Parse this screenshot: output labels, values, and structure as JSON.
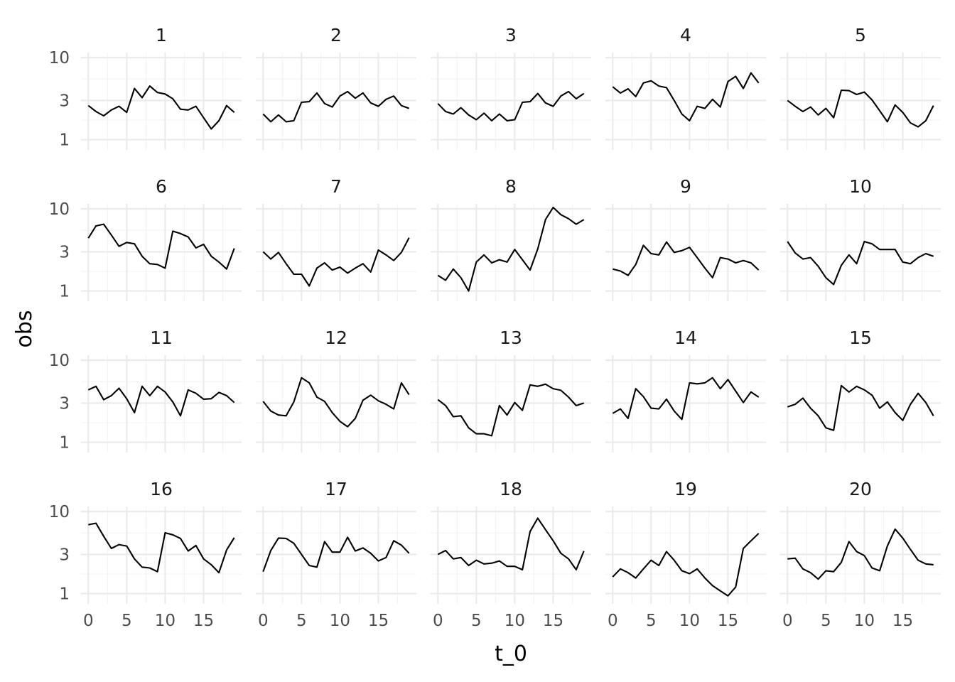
{
  "chart_data": {
    "type": "line",
    "facets": "wrap",
    "ncol": 5,
    "xlabel": "t_0",
    "ylabel": "obs",
    "y_scale": "log10",
    "xlim": [
      -0.95,
      19.95
    ],
    "ylim": [
      0.75,
      11.5
    ],
    "x_ticks": [
      0,
      5,
      10,
      15
    ],
    "y_ticks": [
      1,
      3,
      10
    ],
    "grid": true,
    "x": [
      0,
      1,
      2,
      3,
      4,
      5,
      6,
      7,
      8,
      9,
      10,
      11,
      12,
      13,
      14,
      15,
      16,
      17,
      18,
      19
    ],
    "panels": [
      {
        "label": "1",
        "values": [
          2.6,
          2.2,
          1.95,
          2.3,
          2.55,
          2.15,
          4.2,
          3.25,
          4.5,
          3.75,
          3.6,
          3.15,
          2.35,
          2.3,
          2.55,
          1.85,
          1.35,
          1.7,
          2.6,
          2.15
        ]
      },
      {
        "label": "2",
        "values": [
          2.05,
          1.65,
          2.0,
          1.65,
          1.7,
          2.85,
          2.9,
          3.7,
          2.75,
          2.5,
          3.4,
          3.85,
          3.2,
          3.7,
          2.8,
          2.55,
          3.1,
          3.4,
          2.6,
          2.4
        ]
      },
      {
        "label": "3",
        "values": [
          2.75,
          2.2,
          2.05,
          2.45,
          2.0,
          1.75,
          2.1,
          1.7,
          2.05,
          1.7,
          1.75,
          2.85,
          2.9,
          3.65,
          2.8,
          2.55,
          3.4,
          3.85,
          3.15,
          3.65
        ]
      },
      {
        "label": "4",
        "values": [
          4.4,
          3.7,
          4.15,
          3.35,
          4.9,
          5.2,
          4.5,
          4.3,
          3.0,
          2.05,
          1.7,
          2.55,
          2.4,
          3.1,
          2.5,
          5.1,
          5.9,
          4.2,
          6.5,
          4.9
        ]
      },
      {
        "label": "5",
        "values": [
          3.0,
          2.55,
          2.2,
          2.5,
          2.0,
          2.4,
          1.85,
          4.0,
          3.95,
          3.55,
          3.8,
          3.05,
          2.25,
          1.65,
          2.65,
          2.15,
          1.6,
          1.43,
          1.7,
          2.6
        ]
      },
      {
        "label": "6",
        "values": [
          4.4,
          6.2,
          6.5,
          4.8,
          3.5,
          3.9,
          3.75,
          2.65,
          2.15,
          2.1,
          1.9,
          5.35,
          5.0,
          4.55,
          3.35,
          3.7,
          2.65,
          2.25,
          1.85,
          3.3
        ]
      },
      {
        "label": "7",
        "values": [
          3.0,
          2.45,
          2.95,
          2.15,
          1.6,
          1.6,
          1.15,
          1.9,
          2.2,
          1.8,
          1.95,
          1.65,
          1.9,
          2.15,
          1.7,
          3.15,
          2.75,
          2.35,
          2.95,
          4.45
        ]
      },
      {
        "label": "8",
        "values": [
          1.55,
          1.35,
          1.85,
          1.45,
          1.0,
          2.25,
          2.75,
          2.2,
          2.4,
          2.25,
          3.2,
          2.4,
          1.8,
          3.25,
          7.4,
          10.4,
          8.5,
          7.6,
          6.5,
          7.4
        ]
      },
      {
        "label": "9",
        "values": [
          1.85,
          1.75,
          1.55,
          2.1,
          3.6,
          2.85,
          2.75,
          3.95,
          2.95,
          3.1,
          3.4,
          2.55,
          1.9,
          1.45,
          2.55,
          2.45,
          2.2,
          2.35,
          2.2,
          1.8
        ]
      },
      {
        "label": "10",
        "values": [
          4.0,
          2.9,
          2.45,
          2.55,
          2.0,
          1.45,
          1.2,
          2.05,
          2.75,
          2.15,
          4.0,
          3.75,
          3.2,
          3.2,
          3.2,
          2.25,
          2.15,
          2.55,
          2.85,
          2.65
        ]
      },
      {
        "label": "11",
        "values": [
          4.35,
          4.8,
          3.3,
          3.7,
          4.55,
          3.4,
          2.3,
          4.8,
          3.7,
          4.8,
          4.1,
          3.1,
          2.1,
          4.35,
          3.95,
          3.35,
          3.4,
          4.05,
          3.7,
          3.05
        ]
      },
      {
        "label": "12",
        "values": [
          3.15,
          2.4,
          2.15,
          2.1,
          3.1,
          6.1,
          5.3,
          3.55,
          3.15,
          2.3,
          1.8,
          1.55,
          1.95,
          3.25,
          3.75,
          3.2,
          2.9,
          2.55,
          5.3,
          3.8
        ]
      },
      {
        "label": "13",
        "values": [
          3.3,
          2.8,
          2.05,
          2.1,
          1.5,
          1.27,
          1.27,
          1.2,
          2.8,
          2.15,
          3.05,
          2.45,
          5.0,
          4.8,
          5.1,
          4.5,
          4.3,
          3.55,
          2.8,
          3.0
        ]
      },
      {
        "label": "14",
        "values": [
          2.25,
          2.55,
          1.95,
          4.5,
          3.6,
          2.6,
          2.55,
          3.35,
          2.4,
          1.9,
          5.3,
          5.15,
          5.3,
          6.1,
          4.5,
          5.8,
          4.2,
          3.05,
          4.1,
          3.55
        ]
      },
      {
        "label": "15",
        "values": [
          2.7,
          2.9,
          3.45,
          2.6,
          2.1,
          1.5,
          1.4,
          4.9,
          4.1,
          4.8,
          4.35,
          3.75,
          2.6,
          3.1,
          2.3,
          1.85,
          2.9,
          3.95,
          3.05,
          2.1
        ]
      },
      {
        "label": "16",
        "values": [
          6.9,
          7.2,
          5.0,
          3.55,
          3.95,
          3.8,
          2.65,
          2.1,
          2.05,
          1.85,
          5.5,
          5.2,
          4.7,
          3.3,
          3.85,
          2.65,
          2.25,
          1.8,
          3.4,
          4.8
        ]
      },
      {
        "label": "17",
        "values": [
          1.85,
          3.35,
          4.75,
          4.7,
          4.1,
          3.0,
          2.2,
          2.1,
          4.3,
          3.2,
          3.2,
          4.85,
          3.3,
          3.6,
          3.1,
          2.5,
          2.75,
          4.4,
          3.9,
          3.1
        ]
      },
      {
        "label": "18",
        "values": [
          3.0,
          3.35,
          2.65,
          2.75,
          2.2,
          2.55,
          2.3,
          2.35,
          2.5,
          2.15,
          2.15,
          1.95,
          5.7,
          8.3,
          6.0,
          4.4,
          3.1,
          2.65,
          1.95,
          3.3
        ]
      },
      {
        "label": "19",
        "values": [
          1.6,
          2.0,
          1.8,
          1.55,
          2.0,
          2.55,
          2.2,
          3.25,
          2.55,
          1.9,
          1.75,
          2.0,
          1.55,
          1.25,
          1.08,
          0.94,
          1.2,
          3.55,
          4.4,
          5.4
        ]
      },
      {
        "label": "20",
        "values": [
          2.65,
          2.7,
          2.0,
          1.8,
          1.5,
          1.9,
          1.85,
          2.4,
          4.3,
          3.25,
          2.9,
          2.05,
          1.9,
          3.8,
          6.1,
          4.75,
          3.45,
          2.55,
          2.3,
          2.25
        ]
      }
    ]
  }
}
